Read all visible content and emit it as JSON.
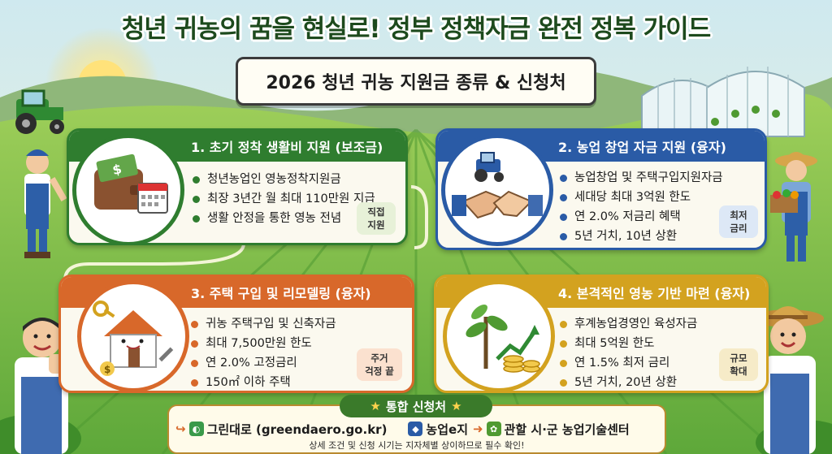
{
  "title": "청년 귀농의 꿈을 현실로! 정부 정책자금 완전 정복 가이드",
  "subtitle": "2026 청년 귀농 지원금 종류 & 신청처",
  "colors": {
    "green": "#2f7d2f",
    "blue": "#2a5ba6",
    "orange": "#d8682a",
    "gold": "#d3a21f"
  },
  "cards": [
    {
      "heading": "1. 초기 정착 생활비 지원 (보조금)",
      "icon": "wallet-calendar-icon",
      "items": [
        "청년농업인 영농정착지원금",
        "최장 3년간 월 최대 110만원 지급",
        "생활 안정을 통한 영농 전념"
      ],
      "tag": [
        "직접",
        "지원"
      ]
    },
    {
      "heading": "2. 농업 창업 자금 지원 (융자)",
      "icon": "tractor-handshake-icon",
      "items": [
        "농업창업 및 주택구입지원자금",
        "세대당 최대 3억원 한도",
        "연 2.0% 저금리 혜택",
        "5년 거치, 10년 상환"
      ],
      "tag": [
        "최저",
        "금리"
      ]
    },
    {
      "heading": "3. 주택 구입 및 리모델링 (융자)",
      "icon": "house-key-icon",
      "items": [
        "귀농 주택구입 및 신축자금",
        "최대 7,500만원 한도",
        "연 2.0% 고정금리",
        "150㎡ 이하 주택"
      ],
      "tag": [
        "주거",
        "걱정 끝"
      ]
    },
    {
      "heading": "4. 본격적인 영농 기반 마련 (융자)",
      "icon": "sprout-coins-icon",
      "items": [
        "후계농업경영인 육성자금",
        "최대 5억원 한도",
        "연 1.5% 최저 금리",
        "5년 거치, 20년 상환"
      ],
      "tag": [
        "규모",
        "확대"
      ]
    }
  ],
  "apply": {
    "heading": "통합 신청처",
    "channels": [
      "그린대로 (greendaero.go.kr)",
      "농업e지",
      "관할 시·군 농업기술센터"
    ],
    "note": "상세 조건 및 신청 시기는 지자체별 상이하므로 필수 확인!"
  }
}
